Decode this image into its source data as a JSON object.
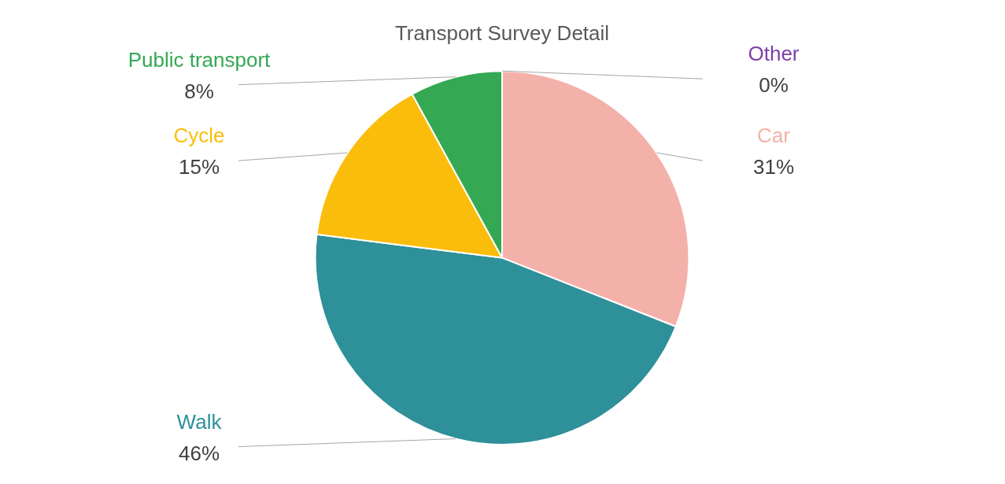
{
  "chart_data": {
    "type": "pie",
    "title": "Transport Survey Detail",
    "categories": [
      "Car",
      "Walk",
      "Cycle",
      "Public transport",
      "Other"
    ],
    "values": [
      31,
      46,
      15,
      8,
      0
    ],
    "colors": [
      "#f4b1aa",
      "#2e9098",
      "#fbbd0c",
      "#34a853",
      "#7e3fa6"
    ],
    "value_labels": [
      "31%",
      "46%",
      "15%",
      "8%",
      "0%"
    ]
  }
}
